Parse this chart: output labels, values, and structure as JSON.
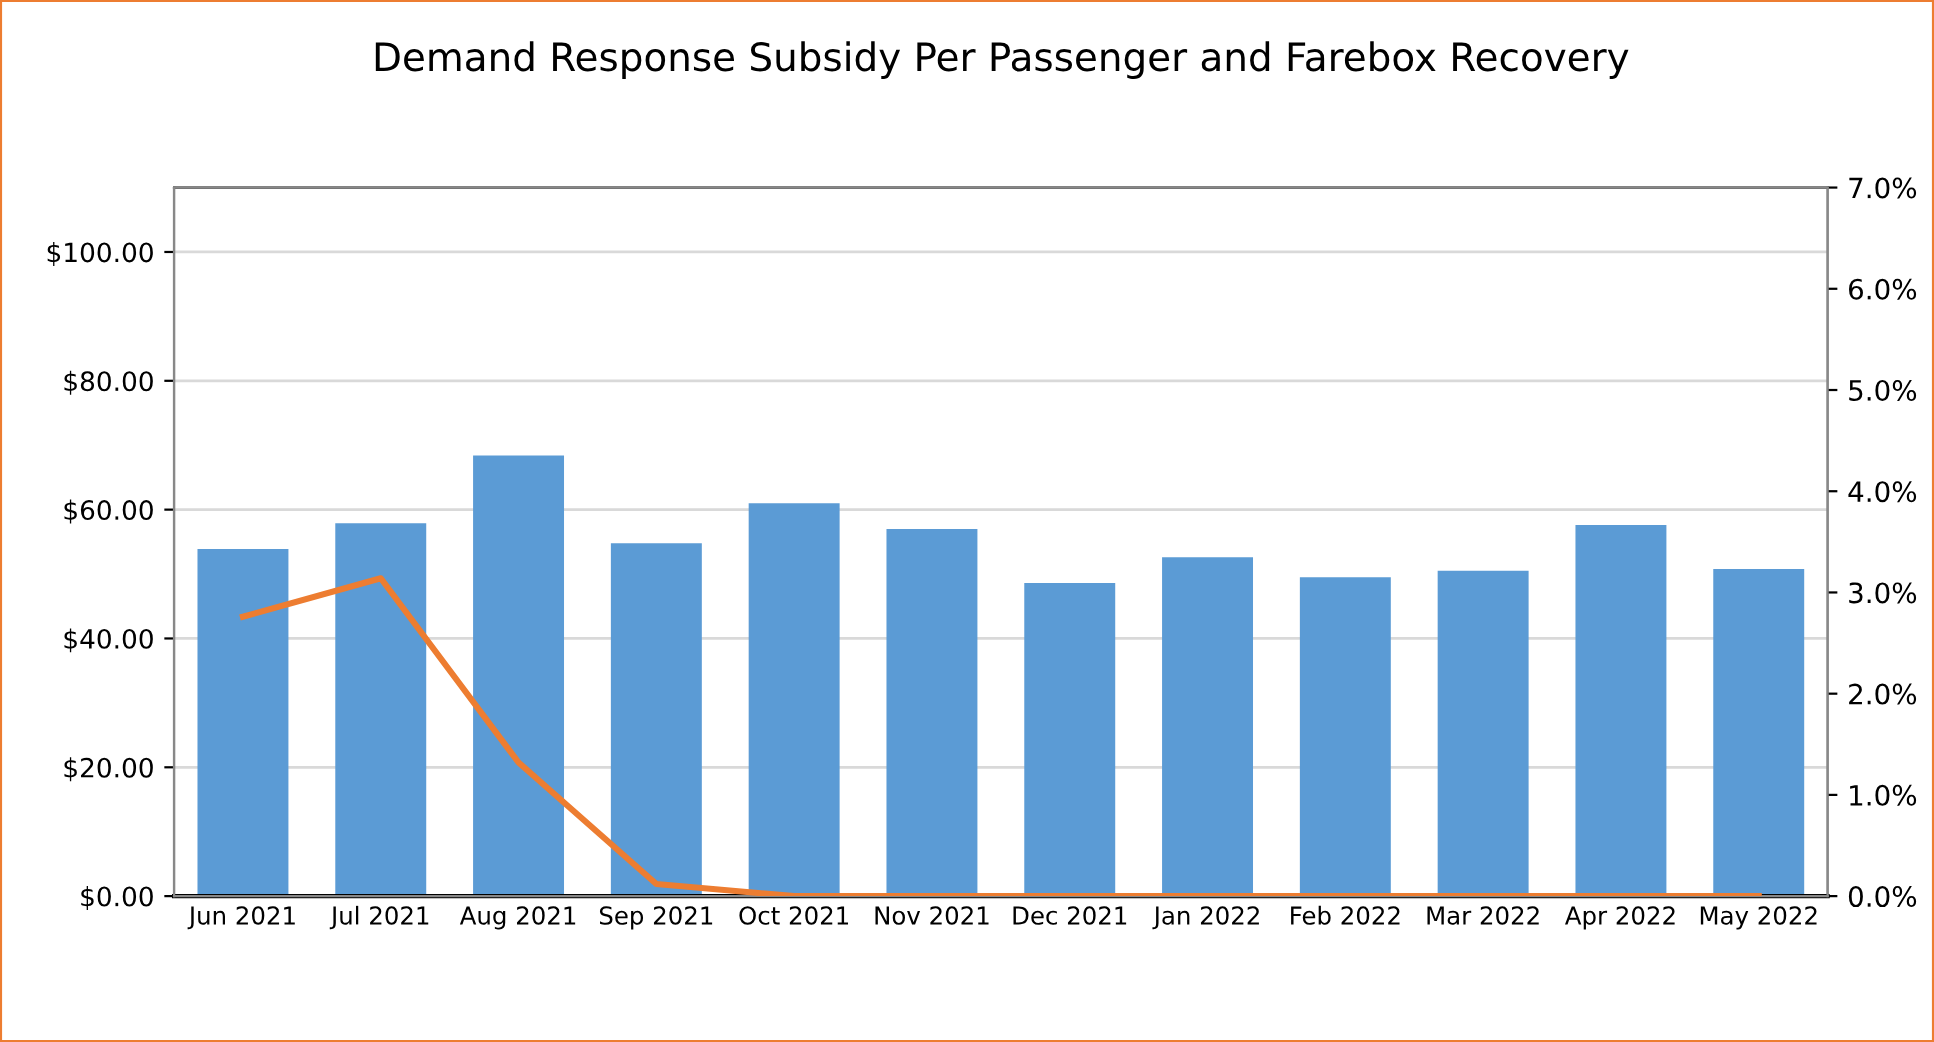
{
  "chart_data": {
    "type": "bar",
    "title": "Demand Response Subsidy Per Passenger and Farebox Recovery",
    "categories": [
      "Jun 2021",
      "Jul 2021",
      "Aug 2021",
      "Sep 2021",
      "Oct 2021",
      "Nov 2021",
      "Dec 2021",
      "Jan 2022",
      "Feb 2022",
      "Mar 2022",
      "Apr 2022",
      "May 2022"
    ],
    "series": [
      {
        "color": "#5b9bd5",
        "values": [
          53.9,
          57.9,
          68.4,
          54.8,
          61.0,
          57.0,
          48.6,
          52.6,
          49.5,
          50.5,
          57.6,
          50.8
        ]
      },
      {
        "type": "line",
        "axis": "y2",
        "color": "#ed7d31",
        "values": [
          2.76,
          3.14,
          1.32,
          0.12,
          0,
          0,
          0,
          0,
          0,
          0,
          0,
          0
        ]
      }
    ],
    "ylim": [
      0,
      110
    ],
    "yticks": [
      {
        "value": 0,
        "label": "$0.00"
      },
      {
        "value": 20,
        "label": "$20.00"
      },
      {
        "value": 40,
        "label": "$40.00"
      },
      {
        "value": 60,
        "label": "$60.00"
      },
      {
        "value": 80,
        "label": "$80.00"
      },
      {
        "value": 100,
        "label": "$100.00"
      }
    ],
    "y2lim": [
      0,
      7
    ],
    "y2ticks": [
      {
        "value": 0,
        "label": "0.0%"
      },
      {
        "value": 1,
        "label": "1.0%"
      },
      {
        "value": 2,
        "label": "2.0%"
      },
      {
        "value": 3,
        "label": "3.0%"
      },
      {
        "value": 4,
        "label": "4.0%"
      },
      {
        "value": 5,
        "label": "5.0%"
      },
      {
        "value": 6,
        "label": "6.0%"
      },
      {
        "value": 7,
        "label": "7.0%"
      }
    ],
    "grid": "y",
    "marker": "none",
    "line_style": "solid"
  }
}
